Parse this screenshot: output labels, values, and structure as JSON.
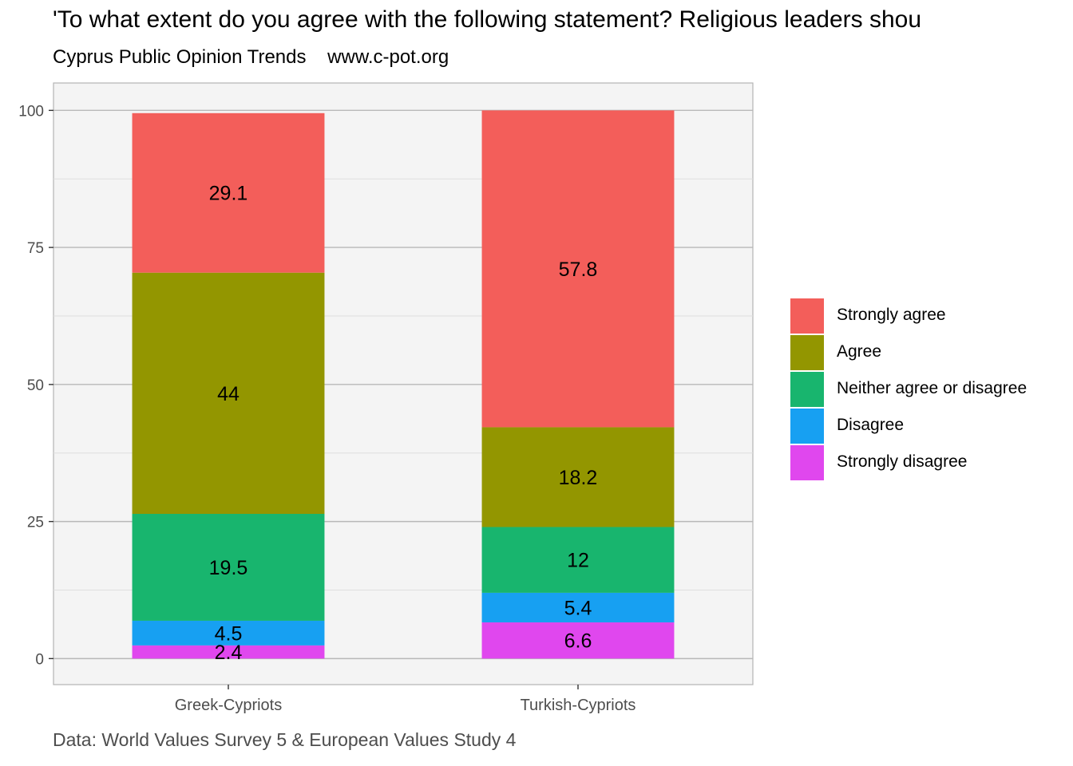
{
  "title": "'To what extent do you agree with the following statement? Religious leaders shou",
  "subtitle": "Cyprus Public Opinion Trends    www.c-pot.org",
  "caption": "Data: World Values Survey 5 & European Values Study 4",
  "legend": [
    {
      "label": "Strongly agree",
      "color": "#F35E5A"
    },
    {
      "label": "Agree",
      "color": "#939600"
    },
    {
      "label": "Neither agree or disagree",
      "color": "#18B56E"
    },
    {
      "label": "Disagree",
      "color": "#17A0F2"
    },
    {
      "label": "Strongly disagree",
      "color": "#E047EE"
    }
  ],
  "chart_data": {
    "type": "bar",
    "stacked": true,
    "categories": [
      "Greek-Cypriots",
      "Turkish-Cypriots"
    ],
    "series": [
      {
        "name": "Strongly disagree",
        "color": "#E047EE",
        "values": [
          2.4,
          6.6
        ]
      },
      {
        "name": "Disagree",
        "color": "#17A0F2",
        "values": [
          4.5,
          5.4
        ]
      },
      {
        "name": "Neither agree or disagree",
        "color": "#18B56E",
        "values": [
          19.5,
          12
        ]
      },
      {
        "name": "Agree",
        "color": "#939600",
        "values": [
          44,
          18.2
        ]
      },
      {
        "name": "Strongly agree",
        "color": "#F35E5A",
        "values": [
          29.1,
          57.8
        ]
      }
    ],
    "yticks": [
      0,
      25,
      50,
      75,
      100
    ],
    "ylim": [
      -4.75,
      105
    ],
    "grid": true,
    "legend_position": "right",
    "xlabel": "",
    "ylabel": ""
  }
}
